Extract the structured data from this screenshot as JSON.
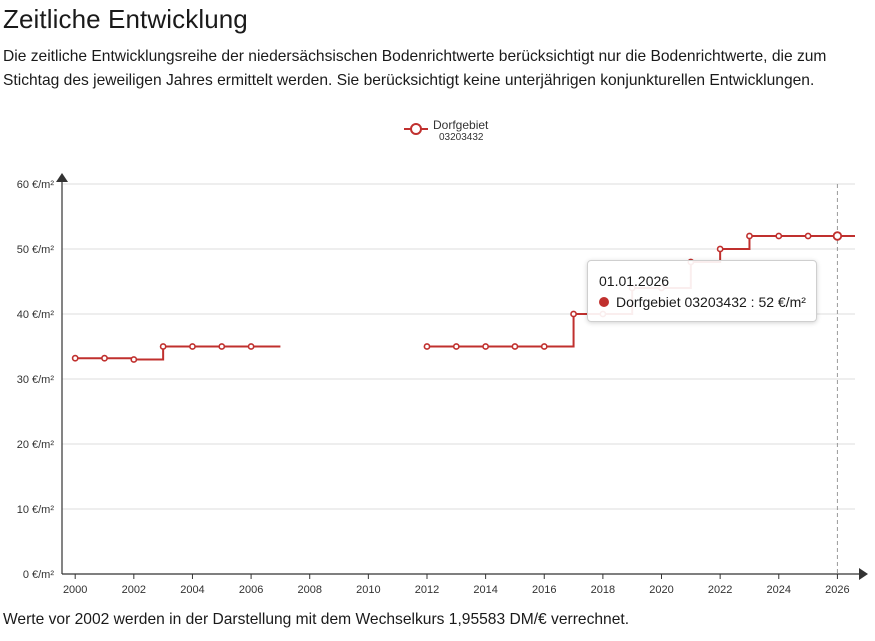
{
  "page": {
    "heading": "Zeitliche Entwicklung",
    "intro": "Die zeitliche Entwicklungsreihe der niedersächsischen Bodenrichtwerte berücksichtigt nur die Bodenrichtwerte, die zum Stichtag des jeweiligen Jahres ermittelt werden. Sie berücksichtigt keine unterjährigen konjunkturellen Entwicklungen.",
    "note": "Werte vor 2002 werden in der Darstellung mit dem Wechselkurs 1,95583 DM/€ verrechnet."
  },
  "tooltip": {
    "date": "01.01.2026",
    "series_label": "Dorfgebiet 03203432 : 52 €/m²"
  },
  "chart_data": {
    "type": "line",
    "step": "end",
    "title": "",
    "xlabel": "",
    "ylabel": "",
    "unit": "€/m²",
    "xlim": [
      1999.55,
      2026.6
    ],
    "ylim": [
      0,
      60
    ],
    "yticks": [
      0,
      10,
      20,
      30,
      40,
      50,
      60
    ],
    "ytick_labels": [
      "0 €/m²",
      "10 €/m²",
      "20 €/m²",
      "30 €/m²",
      "40 €/m²",
      "50 €/m²",
      "60 €/m²"
    ],
    "xticks": [
      2000,
      2002,
      2004,
      2006,
      2008,
      2010,
      2012,
      2014,
      2016,
      2018,
      2020,
      2022,
      2024,
      2026
    ],
    "xtick_labels": [
      "2000",
      "2002",
      "2004",
      "2006",
      "2008",
      "2010",
      "2012",
      "2014",
      "2016",
      "2018",
      "2020",
      "2022",
      "2024",
      "2026"
    ],
    "grid": "horizontal",
    "legend": "top-center",
    "highlight_x": 2026,
    "series": [
      {
        "name": "Dorfgebiet",
        "subtitle": "03203432",
        "color": "#c0302e",
        "segments": [
          {
            "x": [
              2000,
              2001,
              2002,
              2003,
              2004,
              2005,
              2006
            ],
            "y": [
              33.2,
              33.2,
              33.0,
              35,
              35,
              35,
              35
            ],
            "extend_to": 2007
          },
          {
            "x": [
              2012,
              2013,
              2014,
              2015,
              2016,
              2017,
              2018,
              2019,
              2020,
              2021,
              2022,
              2023,
              2024,
              2025,
              2026
            ],
            "y": [
              35,
              35,
              35,
              35,
              35,
              40,
              40,
              44,
              44,
              48,
              50,
              52,
              52,
              52,
              52
            ],
            "extend_to": 2026.6
          }
        ]
      }
    ]
  }
}
